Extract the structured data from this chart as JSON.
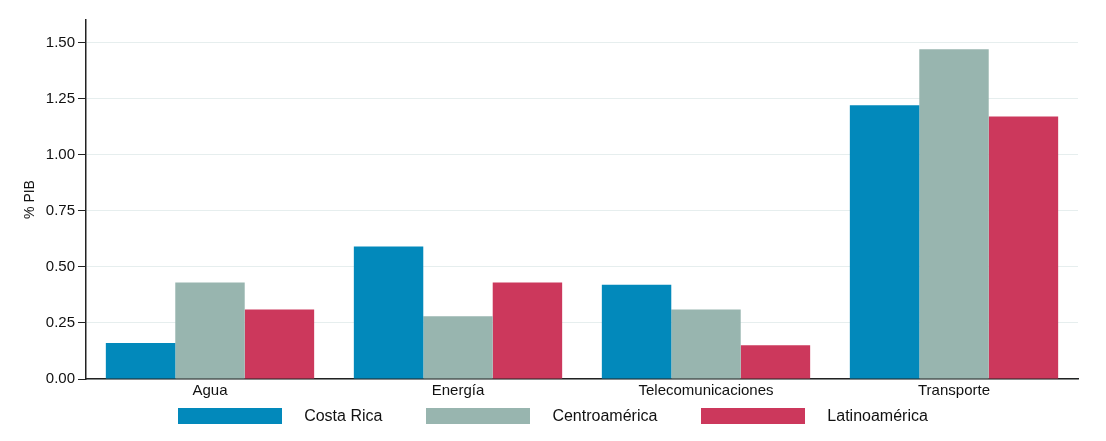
{
  "chart_data": {
    "type": "bar",
    "ylabel": "% PIB",
    "categories": [
      "Agua",
      "Energía",
      "Telecomunicaciones",
      "Transporte"
    ],
    "series": [
      {
        "name": "Costa Rica",
        "color": "#0289bb",
        "values": [
          0.16,
          0.59,
          0.42,
          1.22
        ]
      },
      {
        "name": "Centroamérica",
        "color": "#98b5af",
        "values": [
          0.43,
          0.28,
          0.31,
          1.47
        ]
      },
      {
        "name": "Latinoamérica",
        "color": "#cc385c",
        "values": [
          0.31,
          0.43,
          0.15,
          1.17
        ]
      }
    ],
    "ylim": [
      0,
      1.6
    ],
    "yticks": [
      {
        "value": 0,
        "label": "0.00"
      },
      {
        "value": 0.25,
        "label": "0.25"
      },
      {
        "value": 0.5,
        "label": "0.50"
      },
      {
        "value": 0.75,
        "label": "0.75"
      },
      {
        "value": 1,
        "label": "1.00"
      },
      {
        "value": 1.25,
        "label": "1.25"
      },
      {
        "value": 1.5,
        "label": "1.50"
      }
    ],
    "grid": "y",
    "legend": "bottom"
  }
}
